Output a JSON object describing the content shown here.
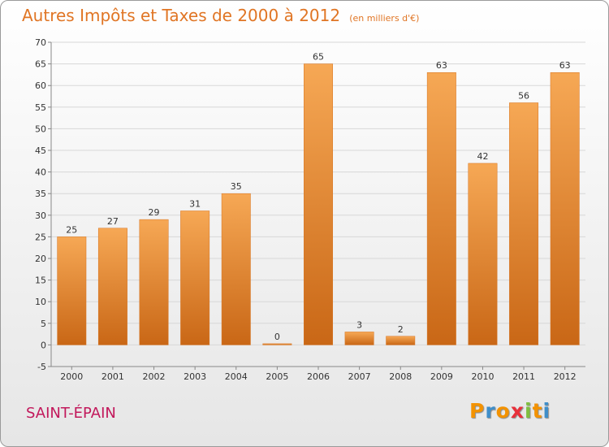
{
  "chart_data": {
    "type": "bar",
    "title": "Autres Impôts et Taxes de 2000 à 2012",
    "unit": "(en milliers d'€)",
    "categories": [
      "2000",
      "2001",
      "2002",
      "2003",
      "2004",
      "2005",
      "2006",
      "2007",
      "2008",
      "2009",
      "2010",
      "2011",
      "2012"
    ],
    "values": [
      25,
      27,
      29,
      31,
      35,
      0,
      65,
      3,
      2,
      63,
      42,
      56,
      63
    ],
    "ylim": [
      -5,
      70
    ],
    "yticks": [
      -5,
      0,
      5,
      10,
      15,
      20,
      25,
      30,
      35,
      40,
      45,
      50,
      55,
      60,
      65,
      70
    ],
    "grid": true,
    "bar_color": "#e8822e"
  },
  "commune": "SAINT-ÉPAIN",
  "logo": {
    "text": "Proxiti",
    "letter_colors": [
      "#f39200",
      "#3f8ec9",
      "#f39200",
      "#e8303a",
      "#7fbf3f",
      "#f39200",
      "#3f8ec9"
    ]
  }
}
